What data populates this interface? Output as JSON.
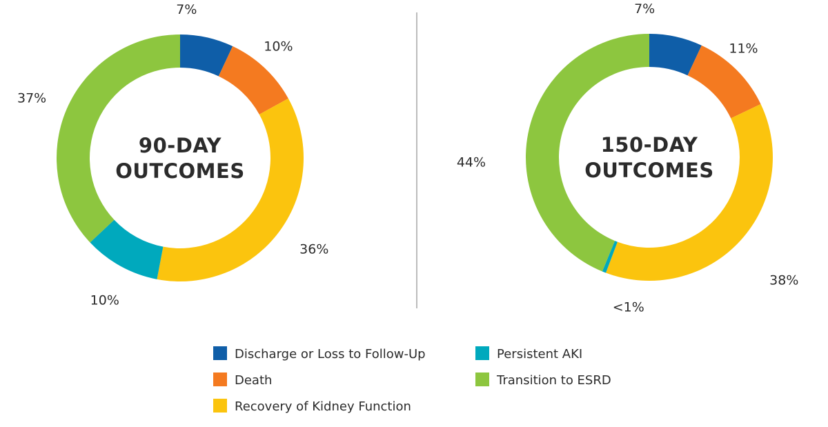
{
  "colors": {
    "discharge": "#0f5ea8",
    "death": "#f47a20",
    "recovery": "#fbc40e",
    "persistent_aki": "#00a9bd",
    "esrd": "#8dc63f",
    "divider": "#a6a6a6"
  },
  "chart_data": [
    {
      "type": "pie",
      "title": "90-DAY OUTCOMES",
      "title_lines": [
        "90-DAY",
        "OUTCOMES"
      ],
      "slices": [
        {
          "name": "Discharge or Loss to Follow-Up",
          "value": 7,
          "label": "7%",
          "color_key": "discharge"
        },
        {
          "name": "Death",
          "value": 10,
          "label": "10%",
          "color_key": "death"
        },
        {
          "name": "Recovery of Kidney Function",
          "value": 36,
          "label": "36%",
          "color_key": "recovery"
        },
        {
          "name": "Persistent AKI",
          "value": 10,
          "label": "10%",
          "color_key": "persistent_aki"
        },
        {
          "name": "Transition to ESRD",
          "value": 37,
          "label": "37%",
          "color_key": "esrd"
        }
      ]
    },
    {
      "type": "pie",
      "title": "150-DAY OUTCOMES",
      "title_lines": [
        "150-DAY",
        "OUTCOMES"
      ],
      "slices": [
        {
          "name": "Discharge or Loss to Follow-Up",
          "value": 7,
          "label": "7%",
          "color_key": "discharge"
        },
        {
          "name": "Death",
          "value": 11,
          "label": "11%",
          "color_key": "death"
        },
        {
          "name": "Recovery of Kidney Function",
          "value": 38,
          "label": "38%",
          "color_key": "recovery"
        },
        {
          "name": "Persistent AKI",
          "value": 0.5,
          "label": "<1%",
          "color_key": "persistent_aki"
        },
        {
          "name": "Transition to ESRD",
          "value": 44,
          "label": "44%",
          "color_key": "esrd"
        }
      ]
    }
  ],
  "legend": {
    "placement": "bottom",
    "items": [
      {
        "label": "Discharge or Loss to Follow-Up",
        "color_key": "discharge"
      },
      {
        "label": "Persistent AKI",
        "color_key": "persistent_aki"
      },
      {
        "label": "Death",
        "color_key": "death"
      },
      {
        "label": "Transition to ESRD",
        "color_key": "esrd"
      },
      {
        "label": "Recovery of Kidney Function",
        "color_key": "recovery"
      }
    ]
  }
}
